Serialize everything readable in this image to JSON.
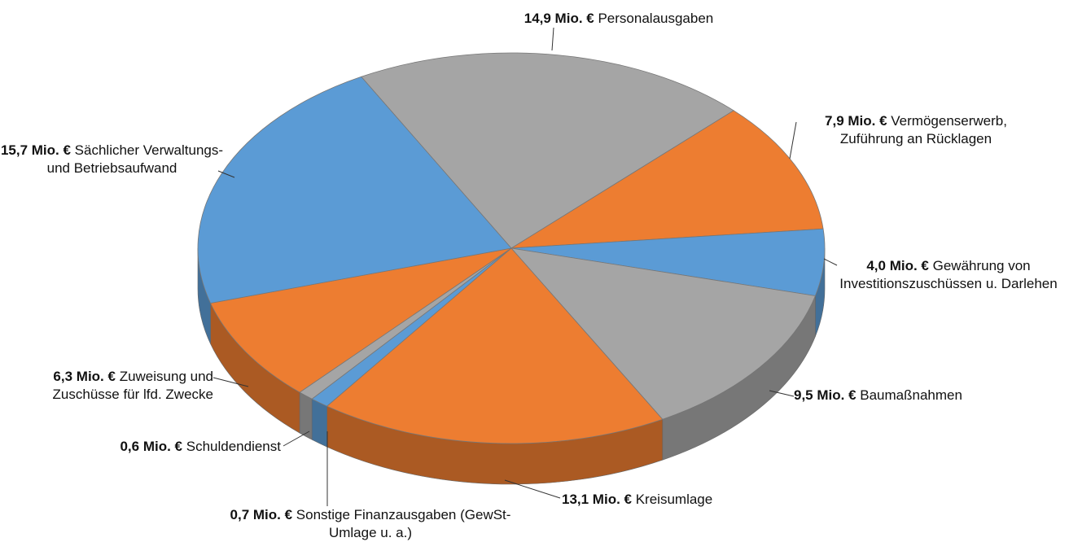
{
  "chart_data": {
    "type": "pie",
    "categories": [
      "Personalausgaben",
      "Vermögenserwerb, Zuführung an Rücklagen",
      "Gewährung von Investitionszuschüssen u. Darlehen",
      "Baumaßnahmen",
      "Kreisumlage",
      "Sonstige Finanzausgaben (GewSt-Umlage u. a.)",
      "Schuldendienst",
      "Zuweisung und Zuschüsse für lfd. Zwecke",
      "Sächlicher Verwaltungs- und Betriebsaufwand"
    ],
    "values": [
      14.9,
      7.9,
      4.0,
      9.5,
      13.1,
      0.7,
      0.6,
      6.3,
      15.7
    ],
    "value_labels": [
      "14,9 Mio. €",
      "7,9 Mio. €",
      "4,0 Mio. €",
      "9,5 Mio. €",
      "13,1 Mio. €",
      "0,7 Mio. €",
      "0,6 Mio. €",
      "6,3 Mio. €",
      "15,7 Mio. €"
    ],
    "colors": [
      "#a5a5a5",
      "#ed7d31",
      "#5b9bd5",
      "#a5a5a5",
      "#ed7d31",
      "#5b9bd5",
      "#a5a5a5",
      "#ed7d31",
      "#5b9bd5"
    ]
  }
}
